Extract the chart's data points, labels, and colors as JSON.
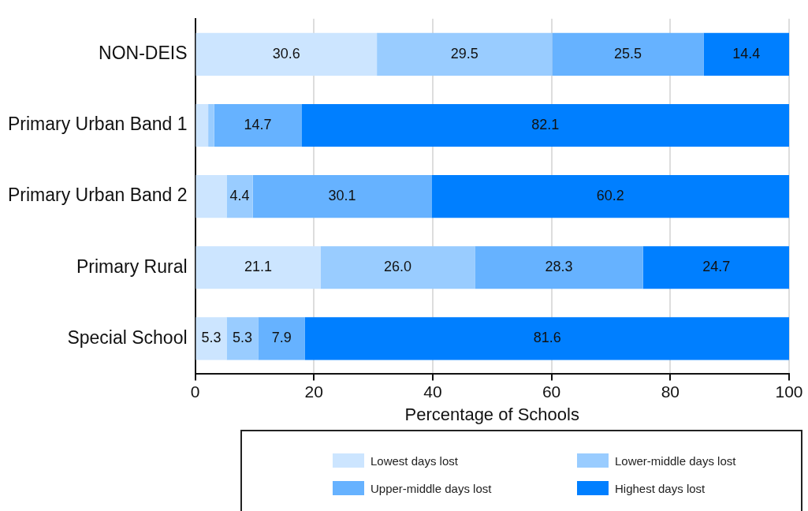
{
  "chart_data": {
    "type": "bar",
    "orientation": "horizontal",
    "stacked": true,
    "xlabel": "Percentage of Schools",
    "categories": [
      "NON-DEIS",
      "Primary Urban Band 1",
      "Primary Urban Band 2",
      "Primary Rural",
      "Special School"
    ],
    "series": [
      {
        "name": "Lowest days lost",
        "color": "#cce5ff",
        "values": [
          30.6,
          2.2,
          5.3,
          21.1,
          5.3
        ],
        "value_labels": [
          "30.6",
          null,
          null,
          "21.1",
          "5.3"
        ]
      },
      {
        "name": "Lower-middle days lost",
        "color": "#99ccff",
        "values": [
          29.5,
          1.0,
          4.4,
          26.0,
          5.3
        ],
        "value_labels": [
          "29.5",
          null,
          "4.4",
          "26.0",
          "5.3"
        ]
      },
      {
        "name": "Upper-middle days lost",
        "color": "#66b2ff",
        "values": [
          25.5,
          14.7,
          30.1,
          28.3,
          7.9
        ],
        "value_labels": [
          "25.5",
          "14.7",
          "30.1",
          "28.3",
          "7.9"
        ]
      },
      {
        "name": "Highest days lost",
        "color": "#007fff",
        "values": [
          14.4,
          82.1,
          60.2,
          24.7,
          81.6
        ],
        "value_labels": [
          "14.4",
          "82.1",
          "60.2",
          "24.7",
          "81.6"
        ]
      }
    ],
    "xlim": [
      0,
      100
    ],
    "xticks": [
      0,
      20,
      40,
      60,
      80,
      100
    ],
    "grid": "x",
    "legend": "bottom"
  }
}
